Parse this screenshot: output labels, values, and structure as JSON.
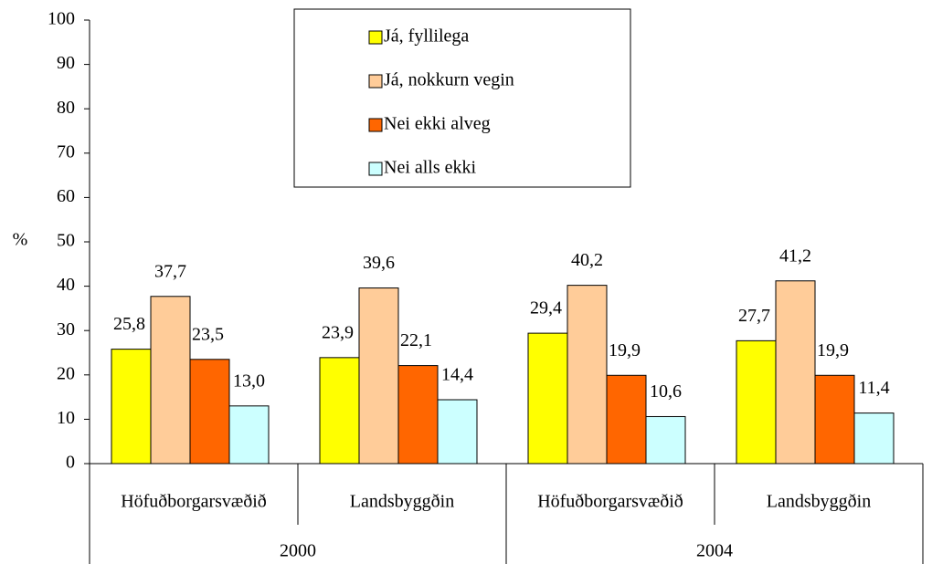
{
  "chart_data": {
    "type": "bar",
    "y_label": "%",
    "categories": [
      "Höfuðborgarsvæðið",
      "Landsbyggðin",
      "Höfuðborgarsvæðið",
      "Landsbyggðin"
    ],
    "category_groups": [
      "2000",
      "2004"
    ],
    "series": [
      {
        "name": "Já, fyllilega",
        "color": "#ffff00",
        "values": [
          25.8,
          23.9,
          29.4,
          27.7
        ],
        "value_labels": [
          "25,8",
          "23,9",
          "29,4",
          "27,7"
        ]
      },
      {
        "name": "Já, nokkurn vegin",
        "color": "#ffcc99",
        "values": [
          37.7,
          39.6,
          40.2,
          41.2
        ],
        "value_labels": [
          "37,7",
          "39,6",
          "40,2",
          "41,2"
        ]
      },
      {
        "name": "Nei ekki alveg",
        "color": "#ff6600",
        "values": [
          23.5,
          22.1,
          19.9,
          19.9
        ],
        "value_labels": [
          "23,5",
          "22,1",
          "19,9",
          "19,9"
        ]
      },
      {
        "name": "Nei alls ekki",
        "color": "#ccffff",
        "values": [
          13.0,
          14.4,
          10.6,
          11.4
        ],
        "value_labels": [
          "13,0",
          "14,4",
          "10,6",
          "11,4"
        ]
      }
    ],
    "ylim": [
      0,
      100
    ],
    "yticks": [
      0,
      10,
      20,
      30,
      40,
      50,
      60,
      70,
      80,
      90,
      100
    ],
    "legend": "top-center"
  }
}
